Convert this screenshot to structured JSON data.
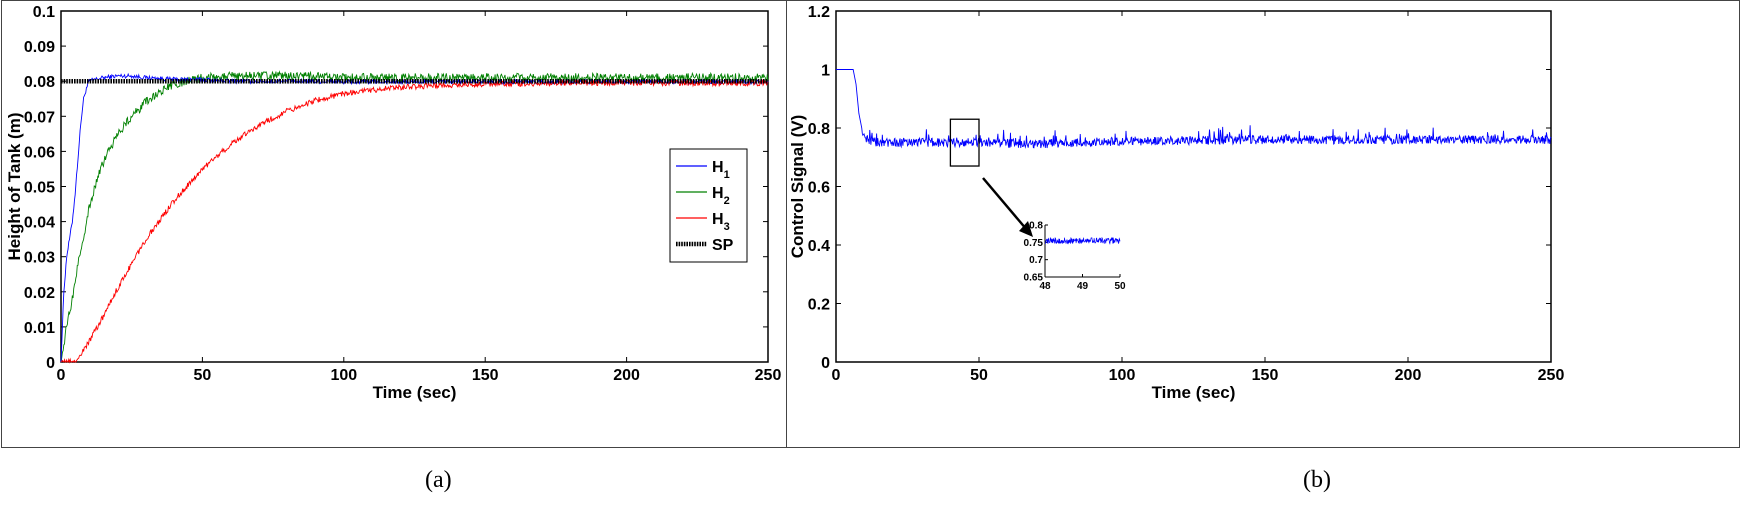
{
  "chart_data": [
    {
      "type": "line",
      "panel_label": "(a)",
      "xlabel": "Time (sec)",
      "ylabel": "Height of Tank (m)",
      "xlim": [
        0,
        250
      ],
      "ylim": [
        0,
        0.1
      ],
      "xticks": [
        "0",
        "50",
        "100",
        "150",
        "200",
        "250"
      ],
      "yticks": [
        "0",
        "0.01",
        "0.02",
        "0.03",
        "0.04",
        "0.05",
        "0.06",
        "0.07",
        "0.08",
        "0.09",
        "0.1"
      ],
      "grid": false,
      "legend_position": "right",
      "legend": [
        {
          "base": "H",
          "sub": "1",
          "color": "#0000ff"
        },
        {
          "base": "H",
          "sub": "2",
          "color": "#008000"
        },
        {
          "base": "H",
          "sub": "3",
          "color": "#ff0000"
        },
        {
          "base": "SP",
          "sub": "",
          "color": "#000000"
        }
      ],
      "series": [
        {
          "name": "H1",
          "color": "#0000ff",
          "x": [
            0,
            1,
            2,
            3,
            4,
            5,
            6,
            7,
            8,
            9,
            10,
            12,
            15,
            20,
            25,
            30,
            40,
            50,
            60,
            80,
            100,
            150,
            200,
            250
          ],
          "y": [
            0.0,
            0.02,
            0.03,
            0.035,
            0.04,
            0.048,
            0.058,
            0.068,
            0.075,
            0.078,
            0.08,
            0.0805,
            0.081,
            0.0815,
            0.0815,
            0.081,
            0.0805,
            0.0805,
            0.08,
            0.08,
            0.0798,
            0.0798,
            0.0798,
            0.0798
          ]
        },
        {
          "name": "H2",
          "color": "#008000",
          "x": [
            0,
            2,
            4,
            6,
            8,
            10,
            12,
            15,
            20,
            25,
            30,
            35,
            40,
            45,
            50,
            55,
            60,
            70,
            80,
            100,
            150,
            200,
            250
          ],
          "y": [
            0.0,
            0.01,
            0.018,
            0.028,
            0.036,
            0.044,
            0.05,
            0.057,
            0.065,
            0.07,
            0.074,
            0.077,
            0.079,
            0.08,
            0.081,
            0.0815,
            0.0815,
            0.0815,
            0.0815,
            0.081,
            0.081,
            0.081,
            0.081
          ]
        },
        {
          "name": "H3",
          "color": "#ff0000",
          "x": [
            0,
            5,
            7,
            10,
            15,
            20,
            25,
            30,
            40,
            50,
            60,
            70,
            80,
            90,
            100,
            110,
            120,
            140,
            160,
            180,
            200,
            225,
            250
          ],
          "y": [
            0.0,
            0.0,
            0.002,
            0.006,
            0.013,
            0.021,
            0.028,
            0.035,
            0.046,
            0.055,
            0.062,
            0.0675,
            0.0715,
            0.0745,
            0.0765,
            0.0775,
            0.0783,
            0.079,
            0.0793,
            0.0795,
            0.0795,
            0.0795,
            0.0795
          ]
        },
        {
          "name": "SP",
          "color": "#000000",
          "x": [
            0,
            250
          ],
          "y": [
            0.08,
            0.08
          ]
        }
      ]
    },
    {
      "type": "line",
      "panel_label": "(b)",
      "xlabel": "Time (sec)",
      "ylabel": "Control Signal (V)",
      "xlim": [
        0,
        250
      ],
      "ylim": [
        0,
        1.2
      ],
      "xticks": [
        "0",
        "50",
        "100",
        "150",
        "200",
        "250"
      ],
      "yticks": [
        "0",
        "0.2",
        "0.4",
        "0.6",
        "0.8",
        "1",
        "1.2"
      ],
      "grid": false,
      "series": [
        {
          "color": "#0000ff",
          "x": [
            0,
            6,
            7,
            8,
            9,
            10,
            12,
            15,
            20,
            50,
            70,
            100,
            150,
            200,
            250
          ],
          "y": [
            1.0,
            1.0,
            0.95,
            0.85,
            0.8,
            0.77,
            0.755,
            0.75,
            0.75,
            0.75,
            0.745,
            0.755,
            0.76,
            0.76,
            0.76
          ]
        }
      ],
      "zoom_box": {
        "x": [
          40,
          50
        ],
        "y": [
          0.67,
          0.83
        ]
      },
      "inset": {
        "xlim": [
          48,
          50
        ],
        "ylim": [
          0.65,
          0.8
        ],
        "xticks": [
          "48",
          "49",
          "50"
        ],
        "yticks": [
          "0.65",
          "0.7",
          "0.75",
          "0.8"
        ],
        "mean": 0.755
      }
    }
  ]
}
